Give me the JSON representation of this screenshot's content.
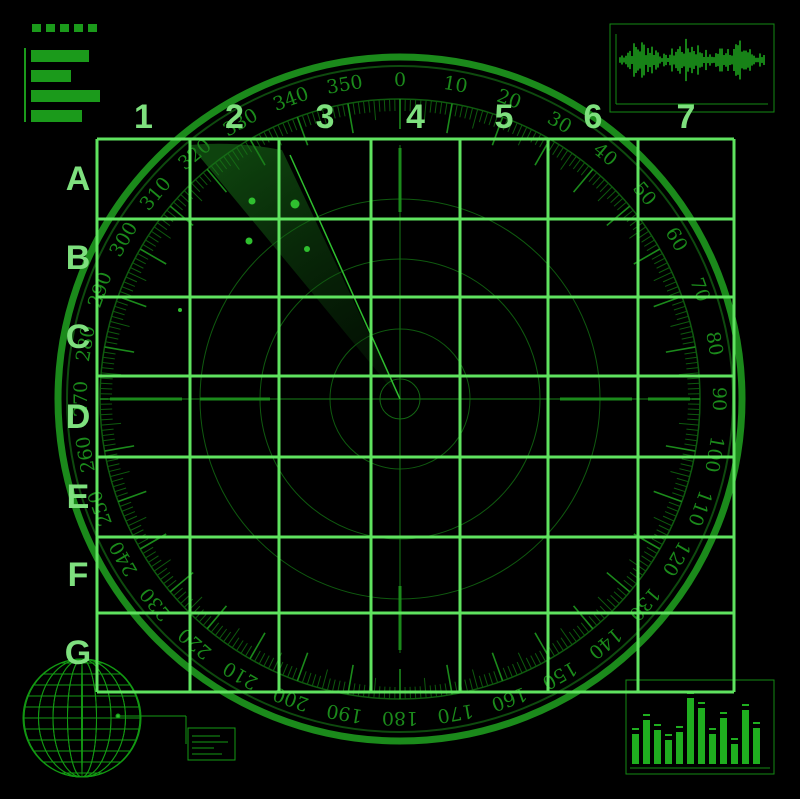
{
  "grid": {
    "columns": [
      "1",
      "2",
      "3",
      "4",
      "5",
      "6",
      "7"
    ],
    "rows": [
      "A",
      "B",
      "C",
      "D",
      "E",
      "F",
      "G"
    ]
  },
  "dial": {
    "degree_labels": [
      "0",
      "10",
      "20",
      "30",
      "40",
      "50",
      "60",
      "70",
      "80",
      "90",
      "100",
      "110",
      "120",
      "130",
      "140",
      "150",
      "160",
      "170",
      "180",
      "190",
      "200",
      "210",
      "220",
      "230",
      "240",
      "250",
      "260",
      "270",
      "280",
      "290",
      "300",
      "310",
      "320",
      "330",
      "340",
      "350"
    ]
  },
  "colors": {
    "grid_line": "#5fe35f",
    "radar_green": "#1f9e1f",
    "dim_green": "#0e5a0e",
    "label_green": "#7ee07e",
    "background": "#000000"
  },
  "icons": {
    "globe": "wireframe-globe-icon",
    "signal": "waveform-icon",
    "bars": "equalizer-bars-icon",
    "status": "status-bars-icon"
  }
}
